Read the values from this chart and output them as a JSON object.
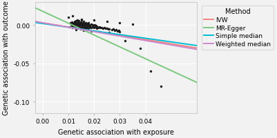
{
  "title": "",
  "xlabel": "Genetic association with exposure",
  "ylabel": "Genetic association with outcome",
  "xlim": [
    -0.003,
    0.06
  ],
  "ylim": [
    -0.115,
    0.03
  ],
  "xticks": [
    0.0,
    0.01,
    0.02,
    0.03,
    0.04
  ],
  "yticks": [
    0.0,
    -0.05,
    -0.1
  ],
  "bg_color": "#f2f2f2",
  "grid_color": "#ffffff",
  "lines": {
    "IVW": {
      "color": "#f4837d",
      "slope": -0.55,
      "intercept": 0.003
    },
    "MR-Egger": {
      "color": "#7bc87e",
      "slope": -1.55,
      "intercept": 0.018
    },
    "Simple median": {
      "color": "#00bcd4",
      "slope": -0.48,
      "intercept": 0.002
    },
    "Weighted median": {
      "color": "#cc88cc",
      "slope": -0.58,
      "intercept": 0.003
    }
  },
  "scatter_x": [
    0.0105,
    0.0108,
    0.011,
    0.0112,
    0.0112,
    0.0115,
    0.0115,
    0.0118,
    0.012,
    0.012,
    0.0122,
    0.0123,
    0.0123,
    0.0125,
    0.0126,
    0.0126,
    0.0128,
    0.0128,
    0.013,
    0.013,
    0.013,
    0.0132,
    0.0132,
    0.0133,
    0.0135,
    0.0135,
    0.0135,
    0.0137,
    0.0137,
    0.0138,
    0.014,
    0.014,
    0.014,
    0.0142,
    0.0143,
    0.0143,
    0.0145,
    0.0145,
    0.0147,
    0.0147,
    0.0148,
    0.015,
    0.015,
    0.015,
    0.0152,
    0.0153,
    0.0153,
    0.0155,
    0.0155,
    0.0157,
    0.0158,
    0.016,
    0.016,
    0.016,
    0.0162,
    0.0163,
    0.0165,
    0.0165,
    0.0167,
    0.0168,
    0.017,
    0.017,
    0.0172,
    0.0173,
    0.0175,
    0.0175,
    0.0177,
    0.0178,
    0.018,
    0.018,
    0.0183,
    0.0185,
    0.0188,
    0.019,
    0.0193,
    0.0195,
    0.0198,
    0.02,
    0.0203,
    0.0205,
    0.0208,
    0.021,
    0.0213,
    0.0215,
    0.022,
    0.0225,
    0.023,
    0.0235,
    0.024,
    0.0245,
    0.025,
    0.0255,
    0.026,
    0.027,
    0.0275,
    0.028,
    0.0285,
    0.029,
    0.0295,
    0.03,
    0.01,
    0.0115,
    0.015,
    0.02,
    0.025,
    0.03,
    0.035,
    0.013,
    0.016,
    0.019,
    0.022,
    0.026,
    0.032,
    0.038,
    0.042,
    0.046
  ],
  "scatter_y": [
    -0.002,
    0.003,
    0.001,
    -0.001,
    0.004,
    0.002,
    -0.003,
    0.0,
    0.001,
    -0.002,
    0.003,
    -0.001,
    0.005,
    0.002,
    -0.002,
    0.004,
    0.0,
    -0.003,
    0.001,
    -0.001,
    0.006,
    0.003,
    -0.002,
    0.0,
    0.002,
    -0.003,
    0.007,
    0.001,
    -0.002,
    0.004,
    0.0,
    -0.003,
    0.006,
    0.002,
    -0.001,
    -0.004,
    0.003,
    -0.002,
    0.001,
    -0.005,
    0.004,
    0.0,
    -0.003,
    0.007,
    0.002,
    -0.001,
    -0.005,
    0.003,
    -0.002,
    0.001,
    -0.004,
    0.0,
    -0.003,
    0.005,
    0.002,
    -0.002,
    0.001,
    -0.004,
    0.003,
    -0.001,
    0.0,
    -0.003,
    0.002,
    -0.002,
    0.001,
    -0.005,
    0.003,
    -0.001,
    0.0,
    -0.003,
    -0.001,
    -0.002,
    0.001,
    -0.003,
    0.0,
    -0.002,
    -0.001,
    -0.003,
    0.0,
    -0.002,
    -0.001,
    -0.004,
    -0.002,
    -0.003,
    -0.002,
    -0.003,
    -0.003,
    -0.004,
    -0.003,
    -0.004,
    -0.004,
    -0.005,
    -0.005,
    -0.006,
    -0.005,
    -0.007,
    -0.006,
    -0.008,
    -0.007,
    -0.009,
    0.01,
    0.012,
    0.008,
    0.007,
    0.005,
    0.003,
    0.001,
    -0.006,
    -0.007,
    -0.008,
    -0.009,
    -0.01,
    -0.02,
    -0.03,
    -0.06,
    -0.08
  ],
  "scatter_color": "#1a1a1a",
  "scatter_size": 6,
  "line_width": 1.4,
  "legend_title": "Method",
  "legend_fontsize": 6.5,
  "axis_fontsize": 7,
  "tick_fontsize": 6.5
}
